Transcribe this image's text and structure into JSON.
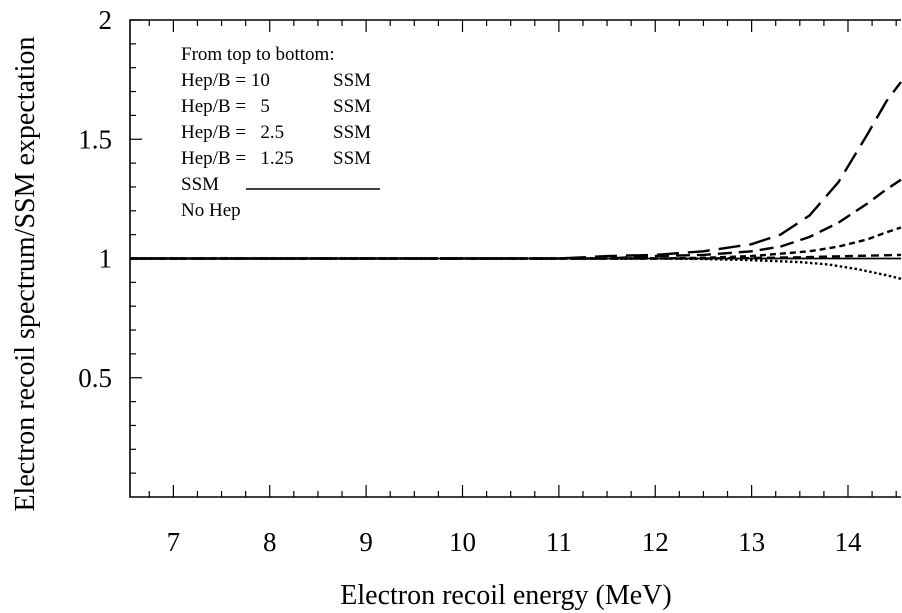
{
  "chart_data": {
    "type": "line",
    "xlabel": "Electron recoil energy (MeV)",
    "ylabel": "Electron recoil spectrum/SSM expectation",
    "xlim": [
      6.55,
      14.55
    ],
    "ylim": [
      0,
      2
    ],
    "x_ticks": [
      "7",
      "8",
      "9",
      "10",
      "11",
      "12",
      "13",
      "14"
    ],
    "y_ticks": [
      "0.5",
      "1",
      "1.5",
      "2"
    ],
    "legend": {
      "position": "top-left",
      "header": "From top to bottom:",
      "entries": [
        {
          "label": "Hep/B = 10",
          "suffix": "SSM"
        },
        {
          "label": "Hep/B =   5",
          "suffix": "SSM"
        },
        {
          "label": "Hep/B =   2.5",
          "suffix": "SSM"
        },
        {
          "label": "Hep/B =   1.25",
          "suffix": "SSM"
        },
        {
          "label": "SSM",
          "suffix": ""
        },
        {
          "label": "No Hep",
          "suffix": ""
        }
      ]
    },
    "series": [
      {
        "dash": "long-dash",
        "x": [
          6.55,
          11.0,
          11.5,
          12.0,
          12.5,
          13.0,
          13.3,
          13.6,
          13.9,
          14.2,
          14.4,
          14.55
        ],
        "y": [
          1.0,
          1.0,
          1.01,
          1.015,
          1.03,
          1.06,
          1.1,
          1.18,
          1.32,
          1.52,
          1.66,
          1.74
        ]
      },
      {
        "dash": "dash",
        "x": [
          6.55,
          11.5,
          12.0,
          12.5,
          13.0,
          13.3,
          13.6,
          13.9,
          14.2,
          14.4,
          14.55
        ],
        "y": [
          1.0,
          1.0,
          1.01,
          1.015,
          1.03,
          1.05,
          1.09,
          1.15,
          1.23,
          1.29,
          1.33
        ]
      },
      {
        "dash": "dot-dash",
        "x": [
          6.55,
          12.0,
          12.5,
          13.0,
          13.3,
          13.6,
          13.9,
          14.2,
          14.4,
          14.55
        ],
        "y": [
          1.0,
          1.0,
          1.003,
          1.01,
          1.02,
          1.03,
          1.05,
          1.08,
          1.11,
          1.13
        ]
      },
      {
        "dash": "short-dash",
        "x": [
          6.55,
          12.5,
          13.0,
          13.5,
          14.0,
          14.55
        ],
        "y": [
          1.0,
          1.0,
          1.002,
          1.005,
          1.01,
          1.015
        ]
      },
      {
        "dash": "solid",
        "x": [
          6.55,
          14.55
        ],
        "y": [
          1.0,
          1.0
        ]
      },
      {
        "dash": "dotted",
        "x": [
          6.55,
          12.0,
          12.5,
          12.9,
          13.2,
          13.5,
          13.8,
          14.1,
          14.4,
          14.55
        ],
        "y": [
          1.0,
          1.0,
          0.998,
          0.994,
          0.99,
          0.985,
          0.975,
          0.955,
          0.93,
          0.915
        ]
      }
    ]
  }
}
